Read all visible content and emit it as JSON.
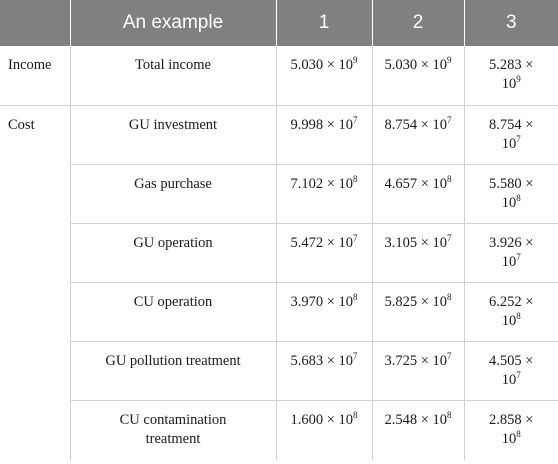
{
  "header": {
    "label": "An example",
    "cols": [
      "1",
      "2",
      "3"
    ]
  },
  "rows": [
    {
      "category": "Income",
      "item": "Total income",
      "values": [
        {
          "mantissa": "5.030",
          "exp": "9"
        },
        {
          "mantissa": "5.030",
          "exp": "9"
        },
        {
          "mantissa": "5.283",
          "exp": "9"
        }
      ]
    },
    {
      "category": "Cost",
      "item": "GU investment",
      "values": [
        {
          "mantissa": "9.998",
          "exp": "7"
        },
        {
          "mantissa": "8.754",
          "exp": "7"
        },
        {
          "mantissa": "8.754",
          "exp": "7"
        }
      ]
    },
    {
      "category": "",
      "item": "Gas purchase",
      "values": [
        {
          "mantissa": "7.102",
          "exp": "8"
        },
        {
          "mantissa": "4.657",
          "exp": "8"
        },
        {
          "mantissa": "5.580",
          "exp": "8"
        }
      ]
    },
    {
      "category": "",
      "item": "GU operation",
      "values": [
        {
          "mantissa": "5.472",
          "exp": "7"
        },
        {
          "mantissa": "3.105",
          "exp": "7"
        },
        {
          "mantissa": "3.926",
          "exp": "7"
        }
      ]
    },
    {
      "category": "",
      "item": "CU operation",
      "values": [
        {
          "mantissa": "3.970",
          "exp": "8"
        },
        {
          "mantissa": "5.825",
          "exp": "8"
        },
        {
          "mantissa": "6.252",
          "exp": "8"
        }
      ]
    },
    {
      "category": "",
      "item": "GU pollution treatment",
      "values": [
        {
          "mantissa": "5.683",
          "exp": "7"
        },
        {
          "mantissa": "3.725",
          "exp": "7"
        },
        {
          "mantissa": "4.505",
          "exp": "7"
        }
      ]
    },
    {
      "category": "",
      "item": "CU contamination treatment",
      "values": [
        {
          "mantissa": "1.600",
          "exp": "8"
        },
        {
          "mantissa": "2.548",
          "exp": "8"
        },
        {
          "mantissa": "2.858",
          "exp": "8"
        }
      ]
    }
  ],
  "notation": {
    "times": "×",
    "base": "10"
  },
  "colors": {
    "header_bg": "#808080",
    "header_text": "#ffffff",
    "grid": "#d0d0d0"
  }
}
